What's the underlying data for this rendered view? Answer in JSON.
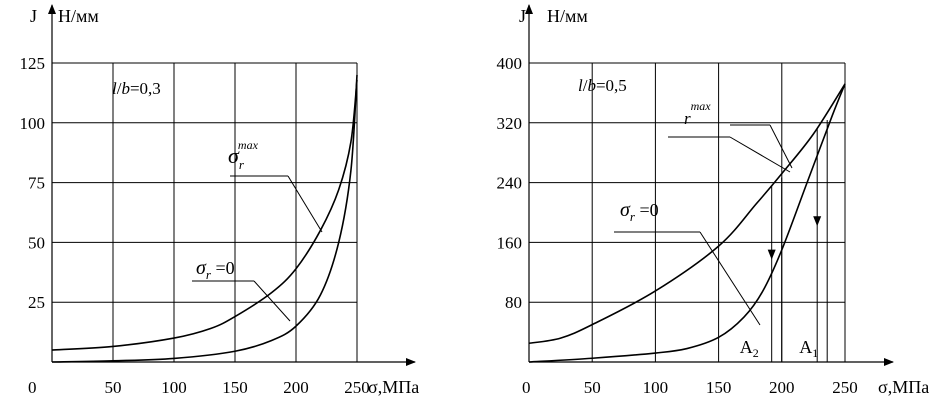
{
  "chart_data": [
    {
      "type": "line",
      "ylabel_letter": "J",
      "ylabel_unit": "Н/мм",
      "xlabel": "σ,МПа",
      "x_origin_label": "0",
      "xlim": [
        0,
        250
      ],
      "ylim": [
        0,
        125
      ],
      "xticks": [
        50,
        100,
        150,
        200,
        250
      ],
      "yticks": [
        25,
        50,
        75,
        100,
        125
      ],
      "grid": true,
      "parameter_label": "l/b=0,3",
      "series": [
        {
          "name": "σr max",
          "x": [
            0,
            50,
            100,
            130,
            150,
            180,
            200,
            220,
            235,
            245,
            250
          ],
          "y": [
            5,
            6.5,
            10,
            14,
            19,
            29,
            39,
            55,
            72,
            92,
            118
          ]
        },
        {
          "name": "σr =0",
          "x": [
            0,
            50,
            100,
            150,
            180,
            200,
            220,
            235,
            245,
            250
          ],
          "y": [
            0,
            0.5,
            1.5,
            4.5,
            9,
            15,
            28,
            50,
            80,
            120
          ]
        }
      ]
    },
    {
      "type": "line",
      "ylabel_letter": "J",
      "ylabel_unit": "Н/мм",
      "xlabel": "σ,МПа",
      "x_origin_label": "0",
      "xlim": [
        0,
        250
      ],
      "ylim": [
        0,
        400
      ],
      "xticks": [
        50,
        100,
        150,
        200,
        250
      ],
      "yticks": [
        80,
        160,
        240,
        320,
        400
      ],
      "grid": true,
      "parameter_label": "l/b=0,5",
      "series": [
        {
          "name": "σr max",
          "x": [
            0,
            25,
            50,
            100,
            150,
            180,
            200,
            225,
            250
          ],
          "y": [
            25,
            32,
            50,
            95,
            155,
            212,
            252,
            305,
            372
          ]
        },
        {
          "name": "σr =0",
          "x": [
            0,
            50,
            100,
            125,
            150,
            170,
            185,
            200,
            220,
            240,
            250
          ],
          "y": [
            0,
            5,
            12,
            18,
            33,
            60,
            95,
            150,
            240,
            330,
            372
          ]
        }
      ],
      "markers": [
        {
          "label_main": "A",
          "label_sub": "2",
          "x": 192
        },
        {
          "label_main": "A",
          "label_sub": "1",
          "x": 228
        }
      ]
    }
  ]
}
